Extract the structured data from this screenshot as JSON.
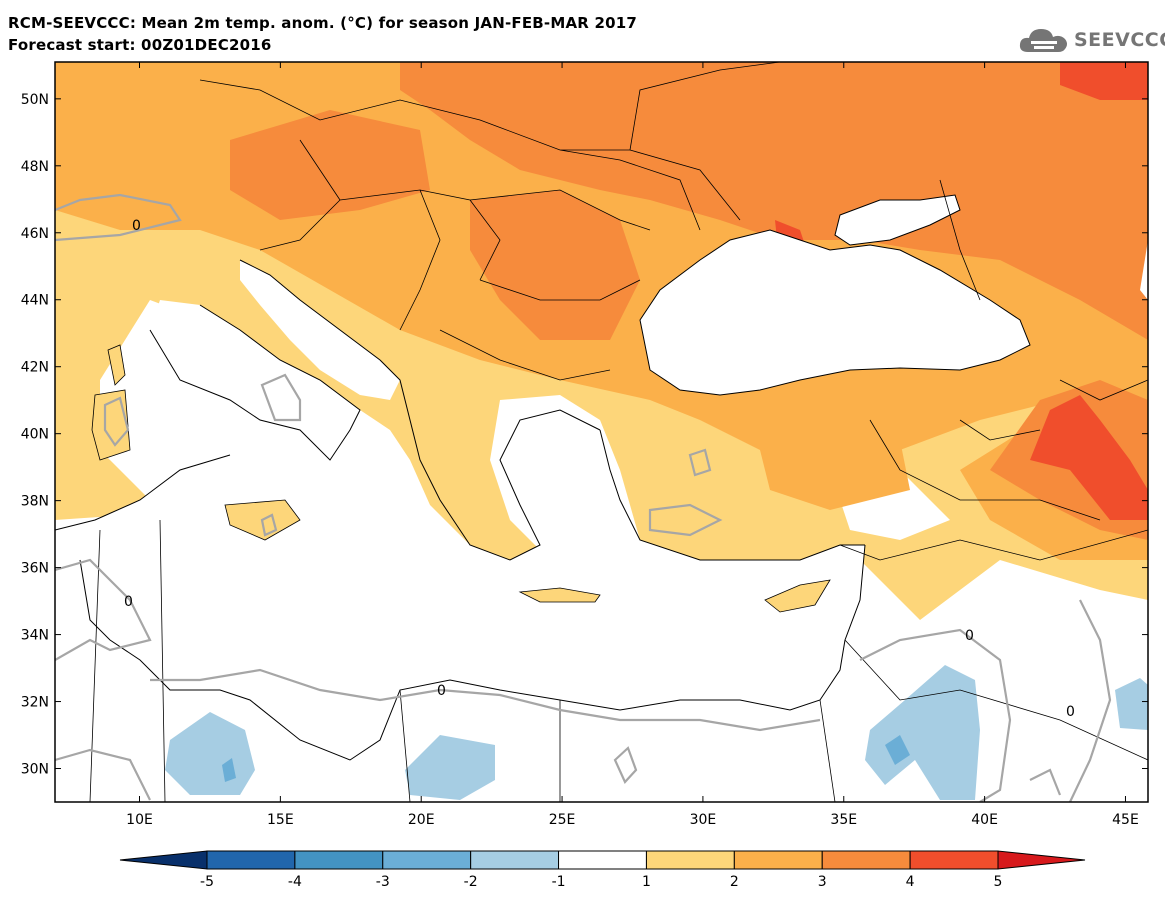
{
  "header": {
    "title_line1": "RCM-SEEVCCC: Mean 2m temp. anom. (°C) for season JAN-FEB-MAR 2017",
    "title_line2": "Forecast start: 00Z01DEC2016"
  },
  "logo": {
    "text": "SEEVCCC",
    "icon": "cloud-icon",
    "color": "#757575"
  },
  "map": {
    "lon_range": [
      7,
      45.8
    ],
    "lat_range": [
      29,
      51.1
    ],
    "lat_ticks": [
      "50N",
      "48N",
      "46N",
      "44N",
      "42N",
      "40N",
      "38N",
      "36N",
      "34N",
      "32N",
      "30N"
    ],
    "lon_ticks": [
      "10E",
      "15E",
      "20E",
      "25E",
      "30E",
      "35E",
      "40E",
      "45E"
    ],
    "contour_label": "0",
    "contour_color": "#a6a6a6",
    "sea_color": "#ffffff"
  },
  "colorbar": {
    "ticks": [
      "-5",
      "-4",
      "-3",
      "-2",
      "-1",
      "1",
      "2",
      "3",
      "4",
      "5"
    ],
    "colors": [
      "#08306b",
      "#2166ac",
      "#4393c3",
      "#6baed6",
      "#a6cde3",
      "#ffffff",
      "#fdd67a",
      "#fbb04a",
      "#f68b3c",
      "#f04e2c",
      "#d7191c"
    ]
  }
}
